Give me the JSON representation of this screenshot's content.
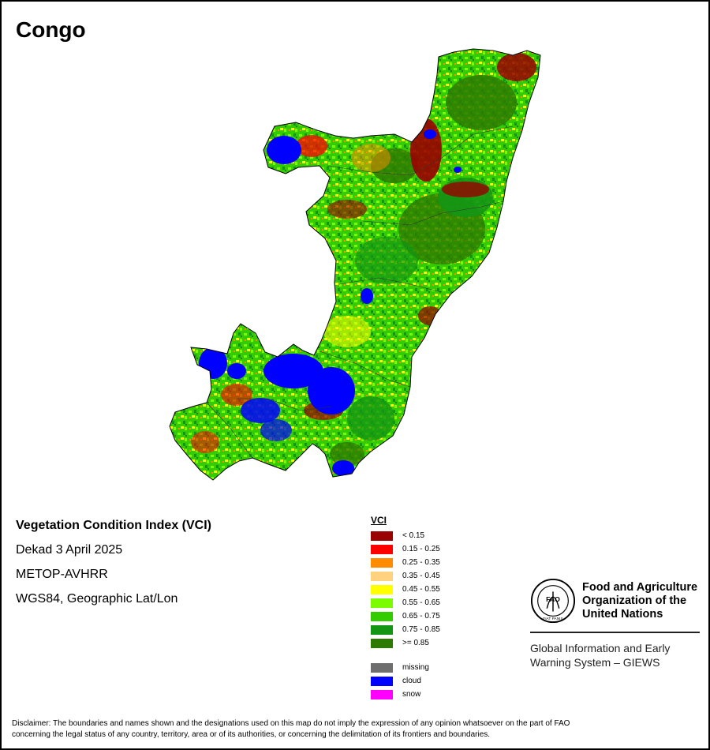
{
  "header": {
    "title": "Congo"
  },
  "info": {
    "index_name": "Vegetation Condition Index (VCI)",
    "period": "Dekad 3 April 2025",
    "sensor": "METOP-AVHRR",
    "projection": "WGS84, Geographic Lat/Lon"
  },
  "legend": {
    "title": "VCI",
    "classes": [
      {
        "label": "< 0.15",
        "color": "#990000"
      },
      {
        "label": "0.15 - 0.25",
        "color": "#ff0000"
      },
      {
        "label": "0.25 - 0.35",
        "color": "#ff8c00"
      },
      {
        "label": "0.35 - 0.45",
        "color": "#ffd27f"
      },
      {
        "label": "0.45 - 0.55",
        "color": "#ffff00"
      },
      {
        "label": "0.55 - 0.65",
        "color": "#7cfc00"
      },
      {
        "label": "0.65 - 0.75",
        "color": "#33cc00"
      },
      {
        "label": "0.75 - 0.85",
        "color": "#149614"
      },
      {
        "label": ">= 0.85",
        "color": "#2d7a00"
      }
    ],
    "special": [
      {
        "label": "missing",
        "color": "#6e6e6e"
      },
      {
        "label": "cloud",
        "color": "#0000ff"
      },
      {
        "label": "snow",
        "color": "#ff00ff"
      }
    ]
  },
  "org": {
    "name_line1": "Food and Agriculture",
    "name_line2": "Organization of the",
    "name_line3": "United Nations",
    "system_line1": "Global Information and Early",
    "system_line2": "Warning System – GIEWS",
    "logo_text": "FAO",
    "logo_motto": "FIAT PANIS"
  },
  "disclaimer": {
    "line1": "Disclaimer: The boundaries and names shown and the designations used on this map do not imply the expression of any opinion whatsoever on the part of FAO",
    "line2": "concerning the legal status of any country, territory, area or of its authorities, or concerning the delimitation of its frontiers and boundaries."
  }
}
